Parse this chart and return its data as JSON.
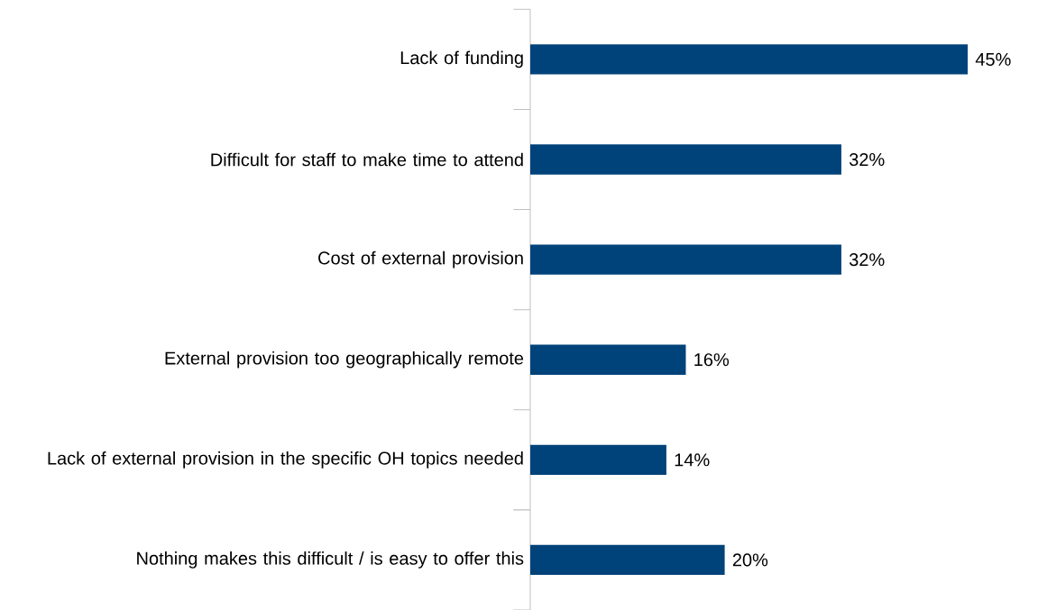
{
  "chart_data": {
    "type": "bar",
    "orientation": "horizontal",
    "categories": [
      "Lack of funding",
      "Difficult for staff to make time to attend",
      "Cost of external provision",
      "External provision too geographically remote",
      "Lack of external provision in the specific OH topics needed",
      "Nothing makes this difficult / is easy to offer this"
    ],
    "values": [
      45,
      32,
      32,
      16,
      14,
      20
    ],
    "value_labels": [
      "45%",
      "32%",
      "32%",
      "16%",
      "14%",
      "20%"
    ],
    "color": "#00427a"
  }
}
